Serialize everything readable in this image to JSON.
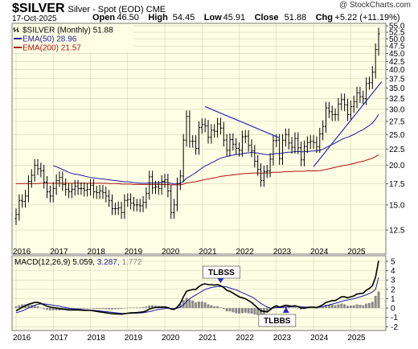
{
  "header": {
    "copyright": "@ StockCharts.com",
    "symbol": "$SILVER",
    "subtitle": "Silver - Spot (EOD) CME",
    "date": "17-Oct-2025",
    "quote": [
      {
        "k": "Open",
        "v": "46.50"
      },
      {
        "k": "High",
        "v": "54.45"
      },
      {
        "k": "Low",
        "v": "45.91"
      },
      {
        "k": "Close",
        "v": "51.88"
      },
      {
        "k": "Chg",
        "v": "+5.22 (+11.19%)"
      }
    ]
  },
  "legend": [
    {
      "label": "$SILVER (Monthly) 51.88",
      "color": "#000000",
      "marker": "ohlc"
    },
    {
      "label": "EMA(50) 28.96",
      "color": "#1a1aa0",
      "marker": "line"
    },
    {
      "label": "EMA(200) 21.57",
      "color": "#b01010",
      "marker": "line"
    }
  ],
  "macd_label": {
    "name": "MACD(12,26,9)",
    "macd": "5.059",
    "signal": "3.287",
    "hist": "1.772",
    "colors": {
      "macd": "#000000",
      "signal": "#1a1aa0",
      "hist": "#8a8a8a"
    }
  },
  "annotations": {
    "tlbss": "TLBSS",
    "tlbbs": "TLBBS"
  },
  "colors": {
    "panel_bg": "#ffffe6",
    "grid": "#c8c8a8",
    "trend": "#2828c0",
    "ema50": "#1a1aa0",
    "ema200": "#b01010"
  },
  "chart_data": {
    "type": "ohlc",
    "interval": "monthly",
    "x_start": "2016-01",
    "x_ticks": [
      "2016",
      "2017",
      "2018",
      "2019",
      "2020",
      "2021",
      "2022",
      "2023",
      "2024",
      "2025"
    ],
    "price_ticks": [
      12.5,
      15.0,
      17.5,
      20.0,
      22.5,
      25.0,
      27.5,
      30.0,
      32.5,
      35.0,
      37.5,
      40.0,
      42.5,
      45.0,
      47.5,
      50.0,
      52.5,
      55.0
    ],
    "price_range": [
      10.5,
      56.0
    ],
    "price_scale": "log",
    "macd_ticks": [
      5,
      4,
      3,
      2,
      1,
      0,
      -1,
      -2
    ],
    "macd_range": [
      -2.4,
      5.6
    ],
    "closes": [
      14.0,
      15.5,
      15.4,
      16.0,
      17.8,
      18.6,
      20.0,
      19.5,
      19.2,
      17.7,
      16.5,
      16.0,
      16.9,
      17.9,
      18.3,
      17.4,
      16.8,
      16.5,
      16.8,
      17.2,
      16.9,
      16.9,
      16.7,
      16.8,
      17.3,
      16.5,
      16.4,
      16.6,
      16.4,
      16.0,
      15.5,
      14.6,
      14.6,
      14.7,
      14.2,
      15.5,
      15.6,
      15.2,
      15.0,
      15.0,
      14.9,
      15.3,
      16.3,
      18.4,
      17.0,
      17.1,
      16.9,
      17.8,
      18.0,
      16.6,
      14.2,
      15.0,
      17.5,
      18.5,
      24.0,
      28.5,
      23.8,
      23.8,
      22.6,
      26.3,
      26.9,
      26.6,
      24.5,
      25.8,
      25.6,
      27.0,
      26.2,
      24.0,
      22.3,
      24.1,
      23.3,
      22.6,
      22.3,
      24.6,
      24.7,
      23.1,
      22.2,
      20.6,
      19.4,
      17.9,
      19.1,
      19.2,
      20.9,
      23.9,
      24.0,
      21.0,
      24.0,
      25.0,
      23.5,
      22.8,
      24.3,
      22.7,
      20.8,
      22.9,
      23.6,
      23.8,
      23.6,
      22.9,
      25.1,
      26.5,
      30.3,
      29.5,
      28.9,
      28.9,
      31.2,
      32.2,
      31.0,
      28.9,
      30.6,
      31.7,
      33.8,
      32.9,
      32.4,
      36.2,
      36.4,
      39.3,
      46.3,
      51.9
    ],
    "ema50": [
      null,
      null,
      null,
      null,
      null,
      null,
      null,
      null,
      null,
      null,
      null,
      null,
      19.9,
      19.8,
      19.6,
      19.4,
      19.2,
      19.0,
      18.85,
      18.75,
      18.7,
      18.6,
      18.5,
      18.4,
      18.3,
      18.25,
      18.2,
      18.15,
      18.1,
      18.05,
      18.0,
      17.95,
      17.9,
      17.85,
      17.8,
      17.75,
      17.75,
      17.7,
      17.65,
      17.6,
      17.55,
      17.55,
      17.55,
      17.6,
      17.6,
      17.6,
      17.6,
      17.65,
      17.7,
      17.65,
      17.55,
      17.45,
      17.5,
      17.55,
      17.8,
      18.2,
      18.45,
      18.7,
      18.95,
      19.3,
      19.6,
      19.9,
      20.1,
      20.35,
      20.55,
      20.85,
      21.05,
      21.2,
      21.3,
      21.45,
      21.55,
      21.6,
      21.65,
      21.75,
      21.85,
      21.9,
      21.95,
      21.9,
      21.85,
      21.75,
      21.65,
      21.6,
      21.6,
      21.7,
      21.8,
      21.75,
      21.85,
      21.95,
      22.0,
      22.0,
      22.1,
      22.1,
      22.05,
      22.05,
      22.1,
      22.15,
      22.2,
      22.2,
      22.3,
      22.45,
      22.75,
      23.0,
      23.25,
      23.5,
      23.8,
      24.1,
      24.35,
      24.5,
      24.75,
      25.0,
      25.35,
      25.65,
      25.9,
      26.3,
      26.7,
      27.15,
      27.95,
      28.96
    ],
    "ema200": [
      17.5,
      17.5,
      17.5,
      17.5,
      17.5,
      17.5,
      17.5,
      17.5,
      17.55,
      17.55,
      17.55,
      17.55,
      17.55,
      17.55,
      17.55,
      17.55,
      17.55,
      17.55,
      17.55,
      17.55,
      17.55,
      17.55,
      17.55,
      17.55,
      17.55,
      17.55,
      17.55,
      17.55,
      17.55,
      17.55,
      17.5,
      17.5,
      17.5,
      17.5,
      17.45,
      17.45,
      17.45,
      17.45,
      17.4,
      17.4,
      17.4,
      17.4,
      17.4,
      17.4,
      17.4,
      17.4,
      17.4,
      17.4,
      17.4,
      17.4,
      17.35,
      17.35,
      17.35,
      17.35,
      17.45,
      17.6,
      17.65,
      17.7,
      17.75,
      17.85,
      17.95,
      18.05,
      18.1,
      18.2,
      18.25,
      18.35,
      18.45,
      18.5,
      18.55,
      18.6,
      18.65,
      18.7,
      18.75,
      18.8,
      18.85,
      18.85,
      18.9,
      18.9,
      18.9,
      18.9,
      18.9,
      18.9,
      18.95,
      19.0,
      19.0,
      19.0,
      19.05,
      19.1,
      19.1,
      19.1,
      19.15,
      19.15,
      19.15,
      19.15,
      19.2,
      19.2,
      19.2,
      19.2,
      19.25,
      19.3,
      19.4,
      19.5,
      19.6,
      19.7,
      19.8,
      19.9,
      20.0,
      20.05,
      20.15,
      20.25,
      20.4,
      20.5,
      20.6,
      20.75,
      20.9,
      21.05,
      21.3,
      21.57
    ],
    "trendlines": [
      {
        "from": [
          "2021-02",
          30.6
        ],
        "to": [
          "2023-02",
          24.4
        ]
      },
      {
        "from": [
          "2024-01",
          19.8
        ],
        "to": [
          "2025-11",
          36.7
        ]
      }
    ],
    "macd": {
      "series": [
        {
          "name": "MACD",
          "values": [
            -0.3,
            -0.1,
            0.1,
            0.25,
            0.4,
            0.5,
            0.6,
            0.6,
            0.5,
            0.35,
            0.2,
            0.1,
            0.05,
            0.0,
            -0.05,
            -0.1,
            -0.15,
            -0.2,
            -0.2,
            -0.2,
            -0.2,
            -0.22,
            -0.25,
            -0.25,
            -0.25,
            -0.3,
            -0.35,
            -0.4,
            -0.45,
            -0.5,
            -0.55,
            -0.6,
            -0.62,
            -0.64,
            -0.65,
            -0.6,
            -0.55,
            -0.52,
            -0.5,
            -0.48,
            -0.45,
            -0.4,
            -0.3,
            -0.1,
            0.0,
            0.05,
            0.08,
            0.1,
            0.12,
            0.05,
            -0.1,
            -0.15,
            0.1,
            0.5,
            1.2,
            1.8,
            1.9,
            2.0,
            2.0,
            2.3,
            2.5,
            2.6,
            2.5,
            2.5,
            2.45,
            2.5,
            2.4,
            2.2,
            1.9,
            1.8,
            1.6,
            1.4,
            1.2,
            1.1,
            1.0,
            0.8,
            0.6,
            0.3,
            0.0,
            -0.3,
            -0.35,
            -0.4,
            -0.2,
            0.1,
            0.25,
            0.1,
            0.2,
            0.3,
            0.25,
            0.2,
            0.25,
            0.15,
            0.0,
            0.0,
            0.05,
            0.1,
            0.1,
            0.05,
            0.2,
            0.35,
            0.6,
            0.7,
            0.8,
            0.8,
            1.0,
            1.2,
            1.2,
            1.1,
            1.2,
            1.3,
            1.5,
            1.55,
            1.6,
            1.9,
            2.1,
            2.4,
            3.3,
            5.06
          ]
        },
        {
          "name": "Signal",
          "values": [
            -0.5,
            -0.4,
            -0.3,
            -0.15,
            0.0,
            0.15,
            0.3,
            0.4,
            0.45,
            0.45,
            0.4,
            0.35,
            0.3,
            0.25,
            0.2,
            0.1,
            0.05,
            0.0,
            -0.05,
            -0.1,
            -0.12,
            -0.15,
            -0.18,
            -0.2,
            -0.22,
            -0.24,
            -0.27,
            -0.3,
            -0.34,
            -0.38,
            -0.42,
            -0.46,
            -0.5,
            -0.53,
            -0.56,
            -0.58,
            -0.58,
            -0.57,
            -0.55,
            -0.54,
            -0.52,
            -0.5,
            -0.45,
            -0.38,
            -0.3,
            -0.22,
            -0.15,
            -0.1,
            -0.05,
            -0.02,
            -0.04,
            -0.06,
            -0.03,
            0.1,
            0.35,
            0.7,
            1.0,
            1.2,
            1.4,
            1.6,
            1.8,
            2.0,
            2.1,
            2.2,
            2.25,
            2.3,
            2.32,
            2.3,
            2.25,
            2.15,
            2.05,
            1.95,
            1.8,
            1.65,
            1.5,
            1.35,
            1.2,
            1.0,
            0.75,
            0.5,
            0.3,
            0.1,
            0.0,
            0.0,
            0.05,
            0.05,
            0.08,
            0.12,
            0.14,
            0.15,
            0.17,
            0.17,
            0.14,
            0.11,
            0.1,
            0.1,
            0.1,
            0.09,
            0.11,
            0.16,
            0.25,
            0.34,
            0.43,
            0.5,
            0.6,
            0.72,
            0.8,
            0.86,
            0.93,
            1.0,
            1.1,
            1.2,
            1.3,
            1.42,
            1.56,
            1.73,
            2.0,
            3.29
          ]
        }
      ]
    }
  }
}
